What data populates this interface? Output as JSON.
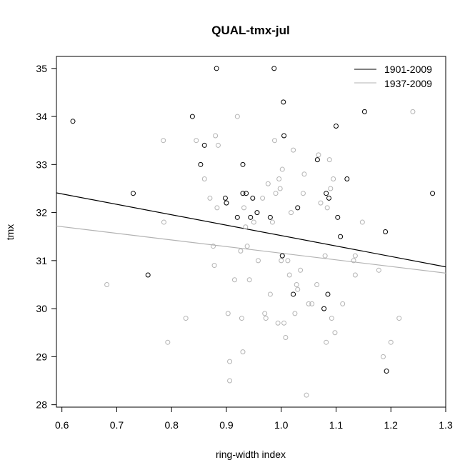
{
  "chart_data": {
    "type": "scatter",
    "title": "QUAL-tmx-jul",
    "xlabel": "ring-width index",
    "ylabel": "tmx",
    "xlim": [
      0.59,
      1.3
    ],
    "ylim": [
      27.95,
      35.25
    ],
    "xticks": [
      "0.6",
      "0.7",
      "0.8",
      "0.9",
      "1.0",
      "1.1",
      "1.2",
      "1.3"
    ],
    "yticks": [
      "28",
      "29",
      "30",
      "31",
      "32",
      "33",
      "34",
      "35"
    ],
    "grid": false,
    "legend_position": "top-right",
    "series": [
      {
        "name": "1901-2009",
        "color": "#000000",
        "marker": "open-circle",
        "points": [
          [
            0.62,
            33.9
          ],
          [
            0.73,
            32.4
          ],
          [
            0.757,
            30.7
          ],
          [
            0.838,
            34.0
          ],
          [
            0.853,
            33.0
          ],
          [
            0.86,
            33.4
          ],
          [
            0.882,
            35.0
          ],
          [
            0.898,
            32.3
          ],
          [
            0.9,
            32.2
          ],
          [
            0.92,
            31.9
          ],
          [
            0.93,
            33.0
          ],
          [
            0.93,
            32.4
          ],
          [
            0.936,
            32.4
          ],
          [
            0.944,
            31.9
          ],
          [
            0.948,
            32.3
          ],
          [
            0.956,
            32.0
          ],
          [
            0.98,
            31.9
          ],
          [
            0.987,
            35.0
          ],
          [
            1.002,
            31.1
          ],
          [
            1.004,
            34.3
          ],
          [
            1.005,
            33.6
          ],
          [
            1.022,
            30.3
          ],
          [
            1.03,
            32.1
          ],
          [
            1.066,
            33.1
          ],
          [
            1.078,
            30.0
          ],
          [
            1.082,
            32.4
          ],
          [
            1.085,
            30.3
          ],
          [
            1.087,
            32.3
          ],
          [
            1.1,
            33.8
          ],
          [
            1.103,
            31.9
          ],
          [
            1.108,
            31.5
          ],
          [
            1.12,
            32.7
          ],
          [
            1.152,
            34.1
          ],
          [
            1.19,
            31.6
          ],
          [
            1.192,
            28.7
          ],
          [
            1.276,
            32.4
          ]
        ],
        "fit": {
          "x": [
            0.59,
            1.3
          ],
          "y": [
            32.41,
            30.87
          ]
        }
      },
      {
        "name": "1937-2009",
        "color": "#b3b3b3",
        "marker": "open-circle",
        "points": [
          [
            0.682,
            30.5
          ],
          [
            0.785,
            33.5
          ],
          [
            0.786,
            31.8
          ],
          [
            0.793,
            29.3
          ],
          [
            0.826,
            29.8
          ],
          [
            0.845,
            33.5
          ],
          [
            0.86,
            32.7
          ],
          [
            0.87,
            32.3
          ],
          [
            0.876,
            31.3
          ],
          [
            0.878,
            30.9
          ],
          [
            0.88,
            33.6
          ],
          [
            0.883,
            32.1
          ],
          [
            0.885,
            33.4
          ],
          [
            0.903,
            29.9
          ],
          [
            0.906,
            28.9
          ],
          [
            0.906,
            28.5
          ],
          [
            0.915,
            30.6
          ],
          [
            0.92,
            34.0
          ],
          [
            0.926,
            31.2
          ],
          [
            0.928,
            29.8
          ],
          [
            0.93,
            29.1
          ],
          [
            0.932,
            32.1
          ],
          [
            0.935,
            31.7
          ],
          [
            0.938,
            31.3
          ],
          [
            0.942,
            30.6
          ],
          [
            0.95,
            31.8
          ],
          [
            0.958,
            31.0
          ],
          [
            0.966,
            32.3
          ],
          [
            0.97,
            29.9
          ],
          [
            0.972,
            29.8
          ],
          [
            0.976,
            32.6
          ],
          [
            0.98,
            30.3
          ],
          [
            0.984,
            31.8
          ],
          [
            0.988,
            33.5
          ],
          [
            0.99,
            32.4
          ],
          [
            0.994,
            29.7
          ],
          [
            0.996,
            32.7
          ],
          [
            0.998,
            32.5
          ],
          [
            1.0,
            31.0
          ],
          [
            1.002,
            32.9
          ],
          [
            1.005,
            29.7
          ],
          [
            1.008,
            29.4
          ],
          [
            1.012,
            31.0
          ],
          [
            1.015,
            30.7
          ],
          [
            1.018,
            32.0
          ],
          [
            1.022,
            33.3
          ],
          [
            1.025,
            29.9
          ],
          [
            1.028,
            30.5
          ],
          [
            1.03,
            30.4
          ],
          [
            1.035,
            30.8
          ],
          [
            1.04,
            32.4
          ],
          [
            1.042,
            32.8
          ],
          [
            1.046,
            28.2
          ],
          [
            1.05,
            30.1
          ],
          [
            1.056,
            30.1
          ],
          [
            1.065,
            30.5
          ],
          [
            1.068,
            33.2
          ],
          [
            1.072,
            32.2
          ],
          [
            1.08,
            31.1
          ],
          [
            1.082,
            29.3
          ],
          [
            1.084,
            32.1
          ],
          [
            1.088,
            33.1
          ],
          [
            1.09,
            32.5
          ],
          [
            1.092,
            29.8
          ],
          [
            1.095,
            32.7
          ],
          [
            1.098,
            29.5
          ],
          [
            1.112,
            30.1
          ],
          [
            1.132,
            31.0
          ],
          [
            1.135,
            31.1
          ],
          [
            1.135,
            30.7
          ],
          [
            1.148,
            31.8
          ],
          [
            1.178,
            30.8
          ],
          [
            1.186,
            29.0
          ],
          [
            1.2,
            29.3
          ],
          [
            1.215,
            29.8
          ],
          [
            1.24,
            34.1
          ]
        ],
        "fit": {
          "x": [
            0.59,
            1.3
          ],
          "y": [
            31.72,
            30.74
          ]
        }
      }
    ]
  }
}
